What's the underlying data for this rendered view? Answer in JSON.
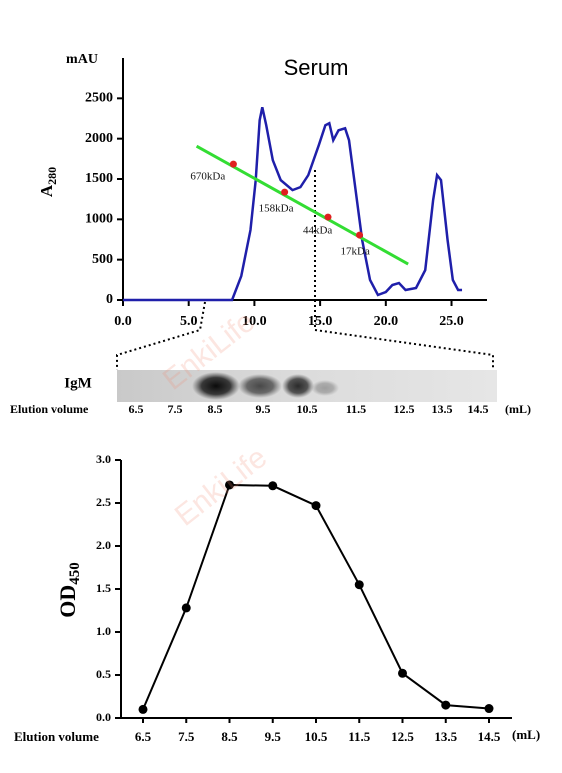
{
  "chart_data": [
    {
      "type": "line",
      "title": "Serum",
      "y_unit_label": "mAU",
      "y_label": "A",
      "y_label_sub": "280",
      "xlim": [
        0,
        27.7
      ],
      "ylim": [
        0,
        3000
      ],
      "xticks": [
        {
          "value": 0,
          "label": "0.0"
        },
        {
          "value": 5,
          "label": "5.0"
        },
        {
          "value": 10,
          "label": "10.0"
        },
        {
          "value": 15,
          "label": "15.0"
        },
        {
          "value": 20,
          "label": "20.0"
        },
        {
          "value": 25,
          "label": "25.0"
        }
      ],
      "yticks": [
        0,
        500,
        1000,
        1500,
        2000,
        2500
      ],
      "series": [
        {
          "color": "#1f1faa",
          "x": [
            0,
            8.3,
            9.0,
            9.7,
            10.1,
            10.4,
            10.6,
            10.9,
            11.4,
            12.0,
            12.9,
            13.5,
            14.1,
            14.9,
            15.4,
            15.7,
            16.0,
            16.4,
            16.9,
            17.2,
            17.7,
            18.2,
            18.8,
            19.4,
            20.0,
            20.5,
            21.0,
            21.5,
            22.3,
            23.0,
            23.6,
            23.9,
            24.2,
            24.7,
            25.1,
            25.5,
            25.8
          ],
          "values": [
            0,
            0,
            297,
            867,
            1486,
            2228,
            2389,
            2166,
            1733,
            1486,
            1362,
            1399,
            1548,
            1919,
            2166,
            2191,
            1981,
            2104,
            2129,
            1981,
            1362,
            743,
            248,
            62,
            99,
            186,
            210,
            124,
            149,
            371,
            1238,
            1548,
            1486,
            743,
            248,
            124,
            124
          ]
        },
        {
          "color": "#33dd33",
          "x": [
            5.6,
            21.7
          ],
          "values": [
            1907,
            446
          ]
        },
        {
          "color": "#e02020",
          "marker": "circle",
          "x": [
            8.4,
            12.3,
            15.6,
            18.0
          ],
          "values": [
            1684,
            1337,
            1028,
            805
          ],
          "point_labels": [
            "670kDa",
            "158kDa",
            "44kDa",
            "17kDa"
          ]
        }
      ]
    },
    {
      "type": "line",
      "y_label": "OD",
      "y_label_sub": "450",
      "x_label": "Elution volume",
      "x_unit": "(mL)",
      "categories": [
        "6.5",
        "7.5",
        "8.5",
        "9.5",
        "10.5",
        "11.5",
        "12.5",
        "13.5",
        "14.5"
      ],
      "ylim": [
        0,
        3
      ],
      "yticks": [
        {
          "value": 0,
          "label": "0.0"
        },
        {
          "value": 0.5,
          "label": "0.5"
        },
        {
          "value": 1,
          "label": "1.0"
        },
        {
          "value": 1.5,
          "label": "1.5"
        },
        {
          "value": 2,
          "label": "2.0"
        },
        {
          "value": 2.5,
          "label": "2.5"
        },
        {
          "value": 3,
          "label": "3.0"
        }
      ],
      "series": [
        {
          "color": "#000000",
          "marker": "circle",
          "values": [
            0.1,
            1.28,
            2.71,
            2.7,
            2.47,
            1.55,
            0.52,
            0.15,
            0.11
          ]
        }
      ]
    }
  ],
  "gel": {
    "label": "IgM",
    "x_label": "Elution volume",
    "fractions": [
      "6.5",
      "7.5",
      "8.5",
      "9.5",
      "10.5",
      "11.5",
      "12.5",
      "13.5",
      "14.5"
    ],
    "unit": "(mL)"
  },
  "watermarks": [
    "EnkiLife",
    "EnkiLife"
  ]
}
